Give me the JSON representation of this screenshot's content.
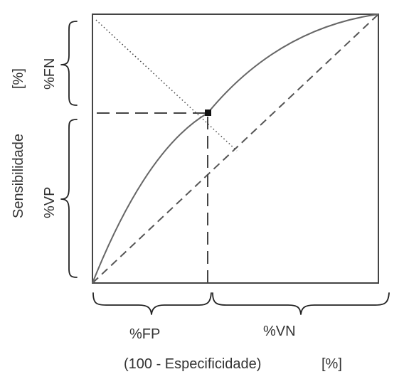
{
  "diagram": {
    "y_axis_title": "Sensibilidade",
    "y_axis_unit": "[%]",
    "x_axis_title": "(100 - Especificidade)",
    "x_axis_unit": "[%]",
    "segments": {
      "false_negative": "%FN",
      "true_positive": "%VP",
      "false_positive": "%FP",
      "true_negative": "%VN"
    }
  }
}
